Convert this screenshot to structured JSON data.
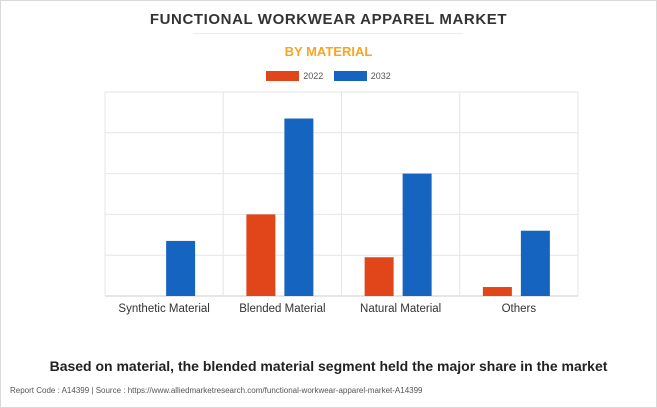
{
  "title": "FUNCTIONAL WORKWEAR APPAREL MARKET",
  "subtitle": "BY MATERIAL",
  "colors": {
    "subtitle": "#f5a623",
    "series_2022": "#e0461a",
    "series_2032": "#1565c0"
  },
  "caption": "Based on material, the blended material segment held the major share in the market",
  "footer": "Report Code : A14399  |  Source : https://www.alliedmarketresearch.com/functional-workwear-apparel-market-A14399",
  "chart_data": {
    "type": "bar",
    "categories": [
      "Synthetic Material",
      "Blended Material",
      "Natural Material",
      "Others"
    ],
    "series": [
      {
        "name": "2022",
        "values": [
          0,
          2.0,
          0.95,
          0.22
        ]
      },
      {
        "name": "2032",
        "values": [
          1.35,
          4.35,
          3.0,
          1.6
        ]
      }
    ],
    "ylim": [
      0,
      5
    ],
    "grid": true,
    "y_tick_labels_shown": false,
    "legend_position": "top-center",
    "xlabel": "",
    "ylabel": ""
  }
}
